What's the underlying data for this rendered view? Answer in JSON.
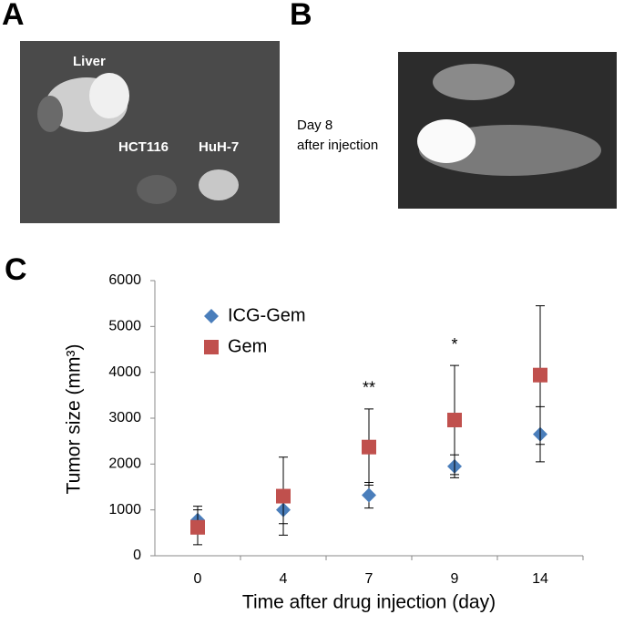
{
  "panels": {
    "a": {
      "label": "A",
      "texts": [
        "Liver",
        "HCT116",
        "HuH-7"
      ]
    },
    "b": {
      "label": "B",
      "caption": [
        "Day 8",
        "after injection"
      ]
    },
    "c": {
      "label": "C"
    }
  },
  "chart_data": {
    "type": "scatter",
    "xlabel": "Time after drug injection (day)",
    "ylabel": "Tumor size (mm³)",
    "categories": [
      "0",
      "4",
      "7",
      "9",
      "14"
    ],
    "series": [
      {
        "name": "ICG-Gem",
        "color": "#4a7ebb",
        "marker": "diamond",
        "values": [
          780,
          1000,
          1320,
          1950,
          2650
        ],
        "errors": [
          300,
          300,
          280,
          250,
          600
        ]
      },
      {
        "name": "Gem",
        "color": "#c0504d",
        "marker": "square",
        "values": [
          620,
          1300,
          2370,
          2960,
          3940
        ],
        "errors": [
          380,
          850,
          830,
          1190,
          1510
        ]
      }
    ],
    "annotations": [
      {
        "text": "**",
        "x": "7"
      },
      {
        "text": "*",
        "x": "9"
      }
    ],
    "ylim": [
      0,
      6000
    ],
    "yticks": [
      0,
      1000,
      2000,
      3000,
      4000,
      5000,
      6000
    ],
    "grid": false,
    "legend": "top-left"
  }
}
